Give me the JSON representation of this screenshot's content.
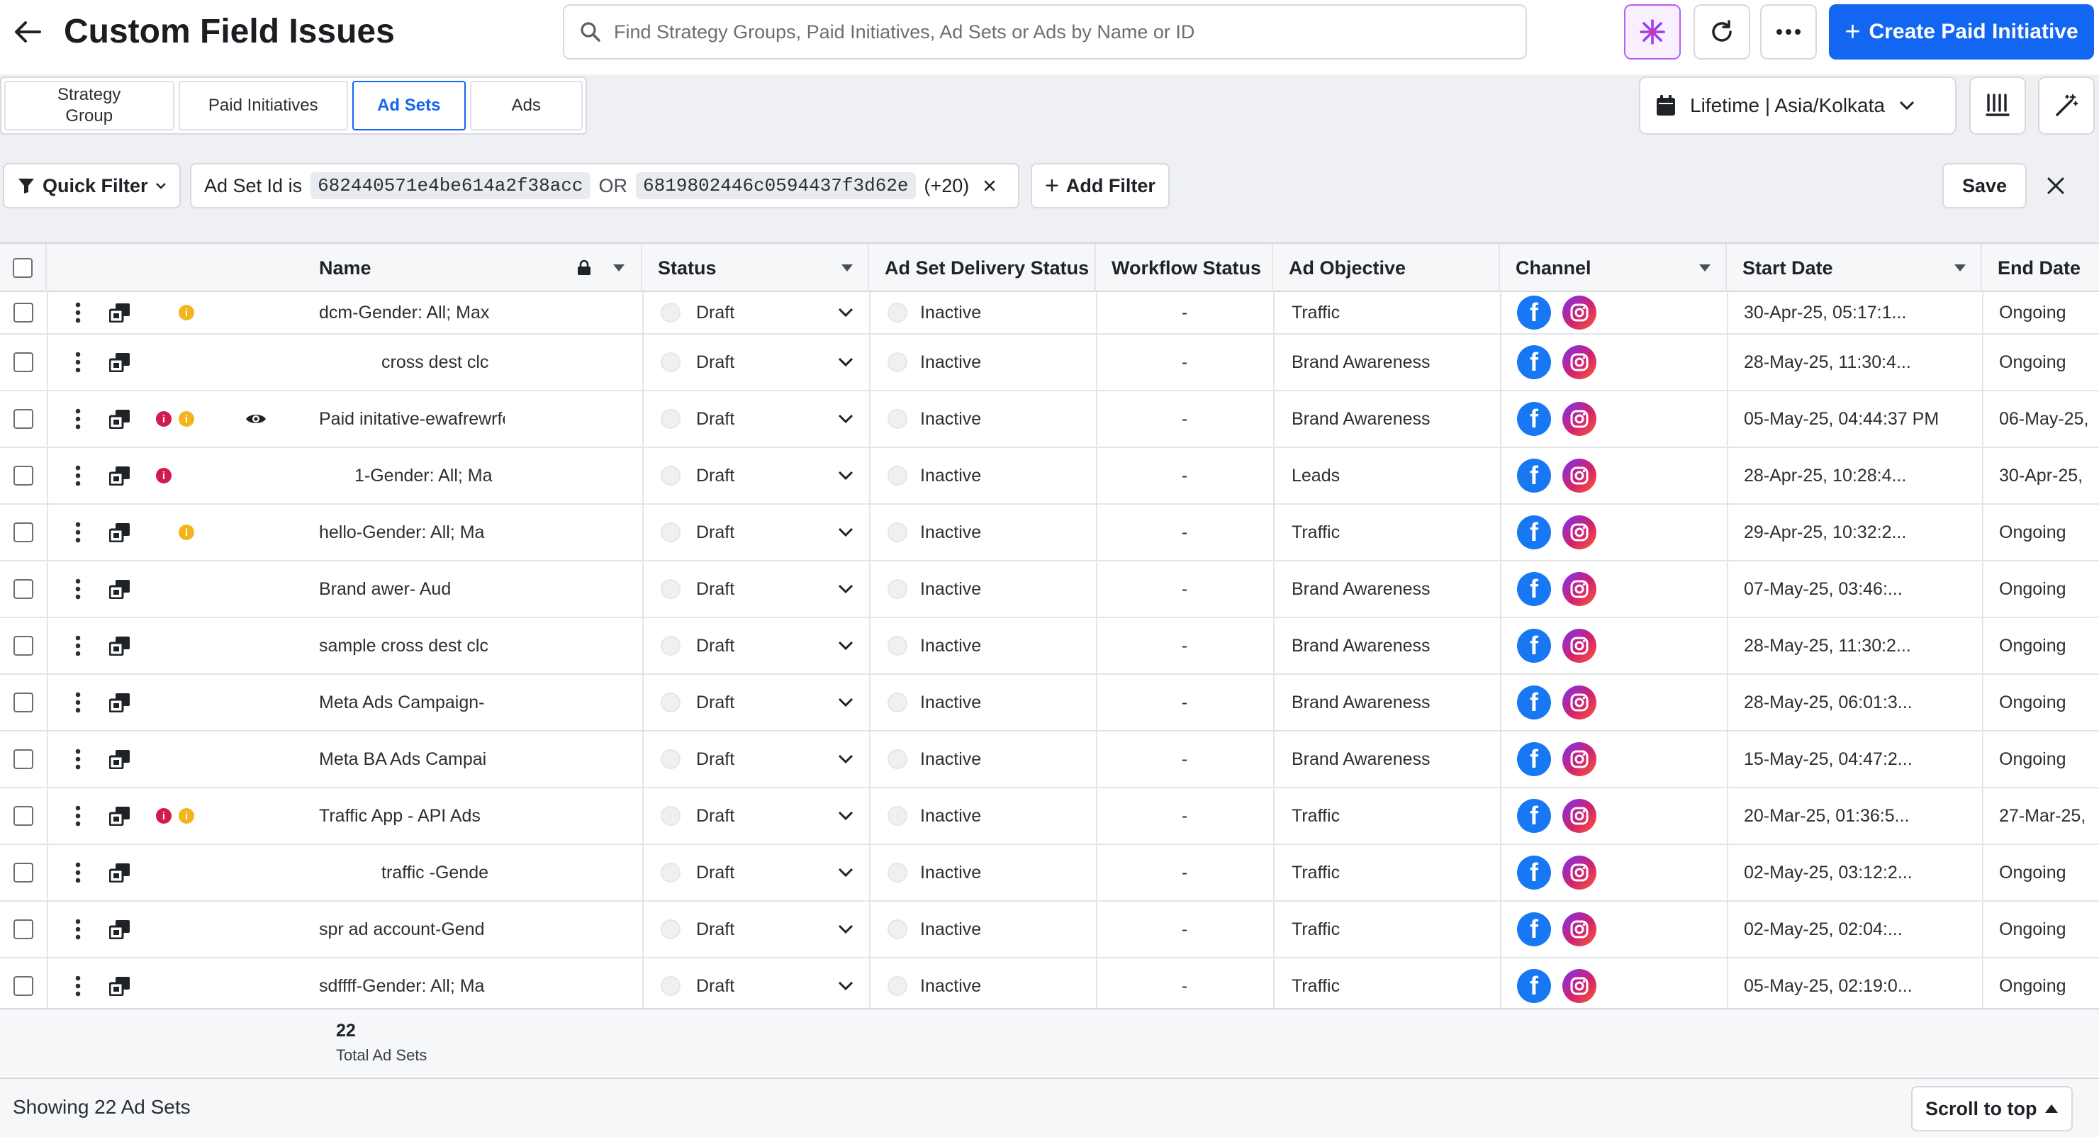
{
  "header": {
    "title": "Custom Field Issues",
    "search_placeholder": "Find Strategy Groups, Paid Initiatives, Ad Sets or Ads by Name or ID",
    "create_label": "Create Paid Initiative"
  },
  "tabs": [
    {
      "label": "Strategy Group",
      "active": false
    },
    {
      "label": "Paid Initiatives",
      "active": false
    },
    {
      "label": "Ad Sets",
      "active": true
    },
    {
      "label": "Ads",
      "active": false
    }
  ],
  "date_range": "Lifetime | Asia/Kolkata",
  "filter": {
    "quick_filter_label": "Quick Filter",
    "condition_prefix": "Ad Set Id is",
    "value1": "682440571e4be614a2f38acc",
    "operator": "OR",
    "value2": "6819802446c0594437f3d62e",
    "more": "(+20)",
    "add_filter_label": "Add Filter",
    "save_label": "Save"
  },
  "columns": [
    "Name",
    "Status",
    "Ad Set Delivery Status",
    "Workflow Status",
    "Ad Objective",
    "Channel",
    "Start Date",
    "End Date"
  ],
  "rows": [
    {
      "indicators": [
        "yel"
      ],
      "eye": false,
      "name": "dcm-Gender: All; Max",
      "name_indent": false,
      "status": "Draft",
      "delivery": "Inactive",
      "workflow": "-",
      "objective": "Traffic",
      "start": "30-Apr-25, 05:17:1...",
      "end": "Ongoing"
    },
    {
      "indicators": [],
      "eye": false,
      "name": "cross dest clc",
      "name_indent": true,
      "status": "Draft",
      "delivery": "Inactive",
      "workflow": "-",
      "objective": "Brand Awareness",
      "start": "28-May-25, 11:30:4...",
      "end": "Ongoing"
    },
    {
      "indicators": [
        "red",
        "yel"
      ],
      "eye": true,
      "name": "Paid initative-ewafrewrfew",
      "name_indent": false,
      "status": "Draft",
      "delivery": "Inactive",
      "workflow": "-",
      "objective": "Brand Awareness",
      "start": "05-May-25, 04:44:37 PM",
      "end": "06-May-25,"
    },
    {
      "indicators": [
        "red"
      ],
      "eye": false,
      "name": "1-Gender: All; Ma",
      "name_indent": true,
      "status": "Draft",
      "delivery": "Inactive",
      "workflow": "-",
      "objective": "Leads",
      "start": "28-Apr-25, 10:28:4...",
      "end": "30-Apr-25,"
    },
    {
      "indicators": [
        "yel"
      ],
      "eye": false,
      "name": "hello-Gender: All; Ma",
      "name_indent": false,
      "status": "Draft",
      "delivery": "Inactive",
      "workflow": "-",
      "objective": "Traffic",
      "start": "29-Apr-25, 10:32:2...",
      "end": "Ongoing"
    },
    {
      "indicators": [],
      "eye": false,
      "name": "Brand awer-  Aud",
      "name_indent": false,
      "status": "Draft",
      "delivery": "Inactive",
      "workflow": "-",
      "objective": "Brand Awareness",
      "start": "07-May-25, 03:46:...",
      "end": "Ongoing"
    },
    {
      "indicators": [],
      "eye": false,
      "name": "sample cross dest clc",
      "name_indent": false,
      "status": "Draft",
      "delivery": "Inactive",
      "workflow": "-",
      "objective": "Brand Awareness",
      "start": "28-May-25, 11:30:2...",
      "end": "Ongoing"
    },
    {
      "indicators": [],
      "eye": false,
      "name": "Meta Ads Campaign-",
      "name_indent": false,
      "status": "Draft",
      "delivery": "Inactive",
      "workflow": "-",
      "objective": "Brand Awareness",
      "start": "28-May-25, 06:01:3...",
      "end": "Ongoing"
    },
    {
      "indicators": [],
      "eye": false,
      "name": "Meta BA Ads Campai",
      "name_indent": false,
      "status": "Draft",
      "delivery": "Inactive",
      "workflow": "-",
      "objective": "Brand Awareness",
      "start": "15-May-25, 04:47:2...",
      "end": "Ongoing"
    },
    {
      "indicators": [
        "red",
        "yel"
      ],
      "eye": false,
      "name": "Traffic App - API Ads",
      "name_indent": false,
      "status": "Draft",
      "delivery": "Inactive",
      "workflow": "-",
      "objective": "Traffic",
      "start": "20-Mar-25, 01:36:5...",
      "end": "27-Mar-25,"
    },
    {
      "indicators": [],
      "eye": false,
      "name": "traffic -Gende",
      "name_indent": true,
      "status": "Draft",
      "delivery": "Inactive",
      "workflow": "-",
      "objective": "Traffic",
      "start": "02-May-25, 03:12:2...",
      "end": "Ongoing"
    },
    {
      "indicators": [],
      "eye": false,
      "name": "spr ad account-Gend",
      "name_indent": false,
      "status": "Draft",
      "delivery": "Inactive",
      "workflow": "-",
      "objective": "Traffic",
      "start": "02-May-25, 02:04:...",
      "end": "Ongoing"
    },
    {
      "indicators": [],
      "eye": false,
      "name": "sdffff-Gender: All; Ma",
      "name_indent": false,
      "status": "Draft",
      "delivery": "Inactive",
      "workflow": "-",
      "objective": "Traffic",
      "start": "05-May-25, 02:19:0...",
      "end": "Ongoing"
    }
  ],
  "totals": {
    "count": "22",
    "label": "Total Ad Sets"
  },
  "footer": {
    "showing": "Showing 22 Ad Sets",
    "scroll_label": "Scroll to top"
  }
}
